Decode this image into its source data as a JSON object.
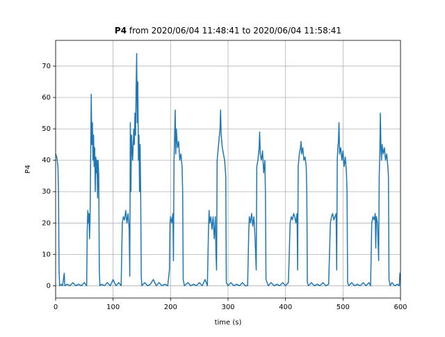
{
  "chart_data": {
    "type": "line",
    "title": {
      "bold": "P4",
      "rest": "from 2020/06/04 11:48:41 to 2020/06/04 11:58:41"
    },
    "xlabel": "time (s)",
    "ylabel": "P4",
    "xlim": [
      0,
      600
    ],
    "ylim": [
      -3.9,
      78.2
    ],
    "xticks": [
      0,
      100,
      200,
      300,
      400,
      500,
      600
    ],
    "yticks": [
      0,
      10,
      20,
      30,
      40,
      50,
      60,
      70
    ],
    "grid": true,
    "series": [
      {
        "name": "P4",
        "color": "#1f77b4",
        "x": [
          0,
          2,
          4,
          5,
          6,
          7,
          10,
          12,
          15,
          16,
          20,
          25,
          30,
          35,
          40,
          45,
          50,
          54,
          55,
          56,
          57,
          58,
          59,
          60,
          61,
          62,
          63,
          64,
          65,
          66,
          67,
          68,
          69,
          70,
          71,
          72,
          73,
          74,
          75,
          76,
          77,
          80,
          85,
          90,
          95,
          100,
          105,
          110,
          114,
          116,
          118,
          120,
          122,
          124,
          126,
          128,
          129,
          130,
          131,
          132,
          134,
          136,
          137,
          138,
          139,
          140,
          141,
          142,
          143,
          144,
          145,
          146,
          147,
          148,
          149,
          150,
          155,
          160,
          165,
          170,
          175,
          180,
          185,
          190,
          195,
          198,
          199,
          200,
          202,
          204,
          205,
          206,
          207,
          208,
          209,
          210,
          212,
          214,
          216,
          218,
          220,
          221,
          222,
          224,
          230,
          235,
          240,
          245,
          250,
          255,
          260,
          264,
          266,
          267,
          268,
          270,
          272,
          274,
          276,
          278,
          279,
          280,
          281,
          282,
          284,
          286,
          287,
          288,
          290,
          292,
          294,
          296,
          297,
          300,
          305,
          310,
          315,
          320,
          325,
          330,
          334,
          336,
          337,
          339,
          341,
          343,
          345,
          347,
          349,
          350,
          352,
          354,
          355,
          356,
          358,
          360,
          362,
          364,
          365,
          366,
          370,
          375,
          380,
          385,
          390,
          395,
          400,
          405,
          408,
          410,
          412,
          414,
          416,
          418,
          420,
          421,
          422,
          424,
          426,
          427,
          428,
          430,
          432,
          434,
          436,
          437,
          438,
          440,
          445,
          450,
          455,
          460,
          465,
          470,
          475,
          478,
          480,
          482,
          484,
          486,
          488,
          489,
          490,
          491,
          492,
          493,
          494,
          496,
          498,
          500,
          502,
          504,
          506,
          507,
          508,
          510,
          515,
          520,
          525,
          530,
          535,
          540,
          545,
          548,
          550,
          552,
          554,
          556,
          557,
          558,
          560,
          562,
          563,
          564,
          565,
          566,
          567,
          568,
          570,
          572,
          574,
          576,
          578,
          579,
          580,
          582,
          585,
          590,
          595,
          598,
          599,
          600
        ],
        "values": [
          42,
          41,
          38,
          30,
          5,
          0,
          0.5,
          0,
          4,
          0,
          0.5,
          0,
          1,
          0,
          0.5,
          0,
          1,
          0,
          18,
          24,
          20,
          23,
          15,
          22,
          42,
          61,
          45,
          52,
          40,
          48,
          38,
          44,
          30,
          41,
          36,
          40,
          28,
          40,
          35,
          5,
          0,
          0.5,
          0,
          1,
          0,
          2,
          0,
          1,
          0,
          20,
          22,
          21,
          24,
          20,
          23,
          18,
          3,
          52,
          30,
          48,
          40,
          50,
          45,
          55,
          48,
          62,
          74,
          52,
          65,
          40,
          48,
          30,
          45,
          28,
          3,
          0,
          1,
          0,
          0.5,
          2,
          0,
          1,
          0,
          0.5,
          0,
          5,
          20,
          22,
          20,
          23,
          8,
          40,
          48,
          56,
          42,
          50,
          44,
          46,
          40,
          42,
          38,
          30,
          2,
          0,
          1,
          0,
          0.5,
          0,
          1,
          0,
          2,
          0,
          18,
          24,
          20,
          22,
          18,
          22,
          15,
          22,
          10,
          5,
          40,
          42,
          46,
          50,
          56,
          48,
          44,
          42,
          40,
          35,
          1,
          0,
          1,
          0,
          0.5,
          0,
          1,
          0,
          0,
          17,
          22,
          20,
          23,
          19,
          22,
          15,
          5,
          38,
          40,
          44,
          49,
          42,
          40,
          43,
          36,
          40,
          30,
          2,
          0,
          1,
          0,
          0.5,
          0,
          1,
          0,
          1,
          20,
          22,
          21,
          23,
          22,
          20,
          23,
          5,
          38,
          42,
          44,
          46,
          42,
          44,
          40,
          41,
          38,
          30,
          1,
          0,
          1,
          0,
          0.5,
          0,
          1,
          0,
          0.5,
          20,
          22,
          23,
          21,
          22,
          23,
          5,
          40,
          44,
          46,
          52,
          42,
          44,
          40,
          43,
          38,
          41,
          36,
          30,
          1,
          0,
          1,
          0,
          0.5,
          0,
          1,
          0,
          1,
          0,
          20,
          22,
          21,
          23,
          12,
          22,
          20,
          8,
          35,
          42,
          55,
          44,
          40,
          45,
          42,
          44,
          40,
          42,
          38,
          35,
          2,
          0,
          1,
          0,
          0.5,
          0,
          4,
          2
        ]
      }
    ]
  }
}
